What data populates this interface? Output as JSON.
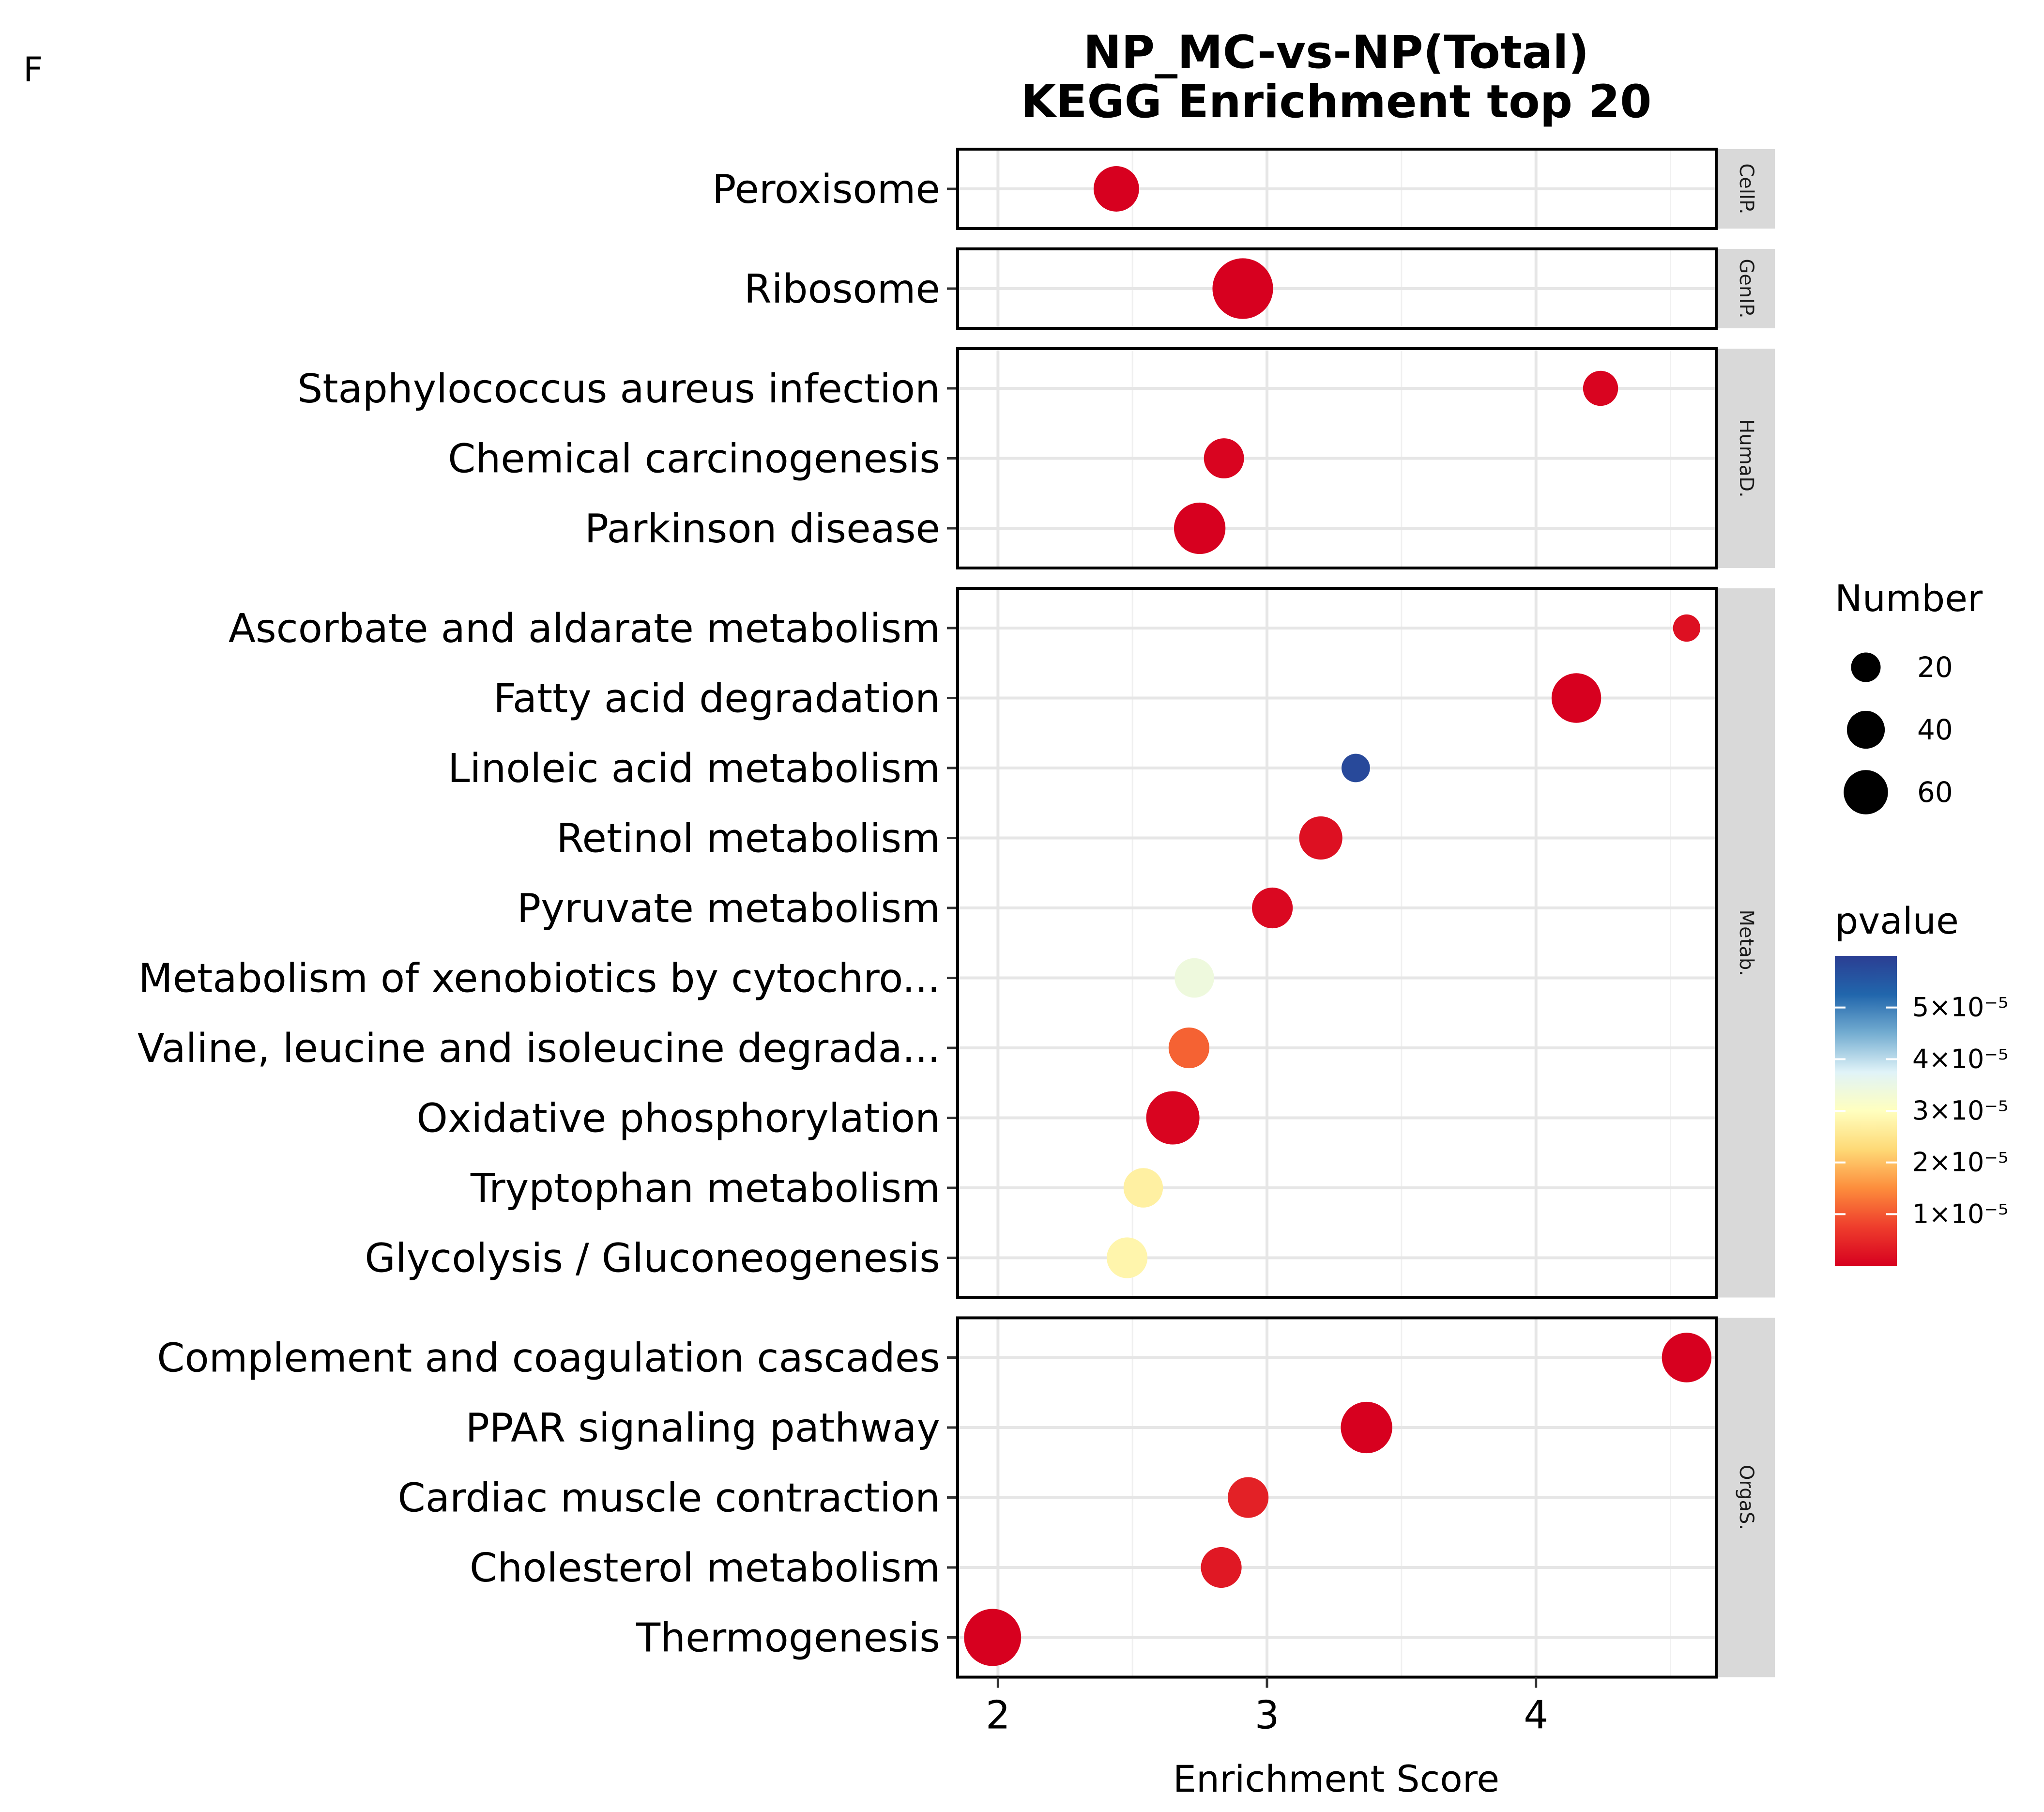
{
  "panel_label": "F",
  "chart_data": {
    "type": "scatter",
    "title": "NP_MC-vs-NP(Total)",
    "subtitle": "KEGG Enrichment top 20",
    "xlabel": "Enrichment Score",
    "xlim": [
      1.85,
      4.67
    ],
    "xticks": [
      2,
      3,
      4
    ],
    "facets": [
      {
        "name": "CellP.",
        "points": [
          {
            "label": "Peroxisome",
            "x": 2.44,
            "number": 30,
            "pvalue": 0.0
          }
        ]
      },
      {
        "name": "GenIP.",
        "points": [
          {
            "label": "Ribosome",
            "x": 2.91,
            "number": 64,
            "pvalue": 0.0
          }
        ]
      },
      {
        "name": "HumaD.",
        "points": [
          {
            "label": "Staphylococcus aureus infection",
            "x": 4.24,
            "number": 14,
            "pvalue": 5e-07
          },
          {
            "label": "Chemical carcinogenesis",
            "x": 2.84,
            "number": 21,
            "pvalue": 5e-07
          },
          {
            "label": "Parkinson disease",
            "x": 2.75,
            "number": 42,
            "pvalue": 0.0
          }
        ]
      },
      {
        "name": "Metab.",
        "points": [
          {
            "label": "Ascorbate and aldarate metabolism",
            "x": 4.56,
            "number": 6,
            "pvalue": 2e-06
          },
          {
            "label": "Fatty acid degradation",
            "x": 4.15,
            "number": 38,
            "pvalue": 0.0
          },
          {
            "label": "Linoleic acid metabolism",
            "x": 3.33,
            "number": 7,
            "pvalue": 5.8e-05
          },
          {
            "label": "Retinol metabolism",
            "x": 3.2,
            "number": 26,
            "pvalue": 2e-06
          },
          {
            "label": "Pyruvate metabolism",
            "x": 3.02,
            "number": 22,
            "pvalue": 1e-06
          },
          {
            "label": "Metabolism of xenobiotics by cytochro...",
            "x": 2.73,
            "number": 20,
            "pvalue": 3.4e-05
          },
          {
            "label": "Valine, leucine and isoleucine degrada...",
            "x": 2.71,
            "number": 22,
            "pvalue": 1.1e-05
          },
          {
            "label": "Oxidative phosphorylation",
            "x": 2.65,
            "number": 46,
            "pvalue": 5e-07
          },
          {
            "label": "Tryptophan metabolism",
            "x": 2.54,
            "number": 20,
            "pvalue": 2.7e-05
          },
          {
            "label": "Glycolysis / Gluconeogenesis",
            "x": 2.48,
            "number": 22,
            "pvalue": 2.8e-05
          }
        ]
      },
      {
        "name": "OrgaS.",
        "points": [
          {
            "label": "Complement and coagulation cascades",
            "x": 4.56,
            "number": 38,
            "pvalue": 0.0
          },
          {
            "label": "PPAR signaling pathway",
            "x": 3.37,
            "number": 42,
            "pvalue": 0.0
          },
          {
            "label": "Cardiac muscle contraction",
            "x": 2.93,
            "number": 22,
            "pvalue": 4e-06
          },
          {
            "label": "Cholesterol metabolism",
            "x": 2.83,
            "number": 22,
            "pvalue": 3e-06
          },
          {
            "label": "Thermogenesis",
            "x": 1.98,
            "number": 55,
            "pvalue": 0.0
          }
        ]
      }
    ],
    "size_legend": {
      "title": "Number",
      "values": [
        20,
        40,
        60
      ],
      "labels": [
        "20",
        "40",
        "60"
      ]
    },
    "color_legend": {
      "title": "pvalue",
      "range": [
        0,
        6e-05
      ],
      "ticks": [
        1e-05,
        2e-05,
        3e-05,
        4e-05,
        5e-05
      ],
      "tick_labels": [
        "1×10⁻⁵",
        "2×10⁻⁵",
        "3×10⁻⁵",
        "4×10⁻⁵",
        "5×10⁻⁵"
      ],
      "colors": [
        "#d7001f",
        "#ee3d2c",
        "#fd8d3c",
        "#fed976",
        "#ffffbf",
        "#e0f3f8",
        "#74add1",
        "#2166ac",
        "#2b3e93"
      ]
    }
  }
}
